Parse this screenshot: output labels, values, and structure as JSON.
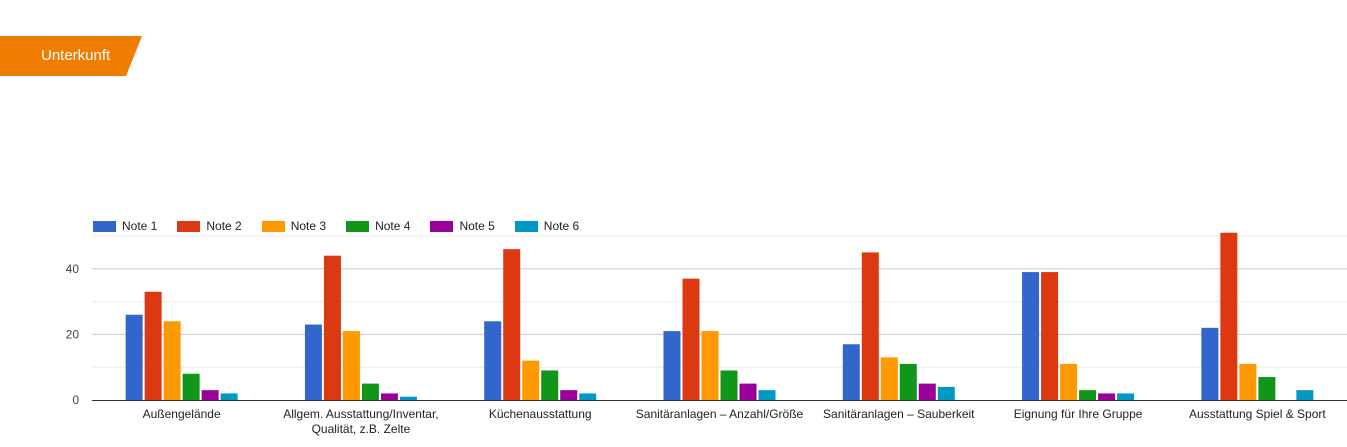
{
  "header": {
    "section_label": "Unterkunft",
    "accent_color": "#f07c00"
  },
  "chart_data": {
    "type": "bar",
    "categories": [
      [
        "Außengelände"
      ],
      [
        "Allgem. Ausstattung/Inventar,",
        "Qualität, z.B. Zelte"
      ],
      [
        "Küchenausstattung"
      ],
      [
        "Sanitäranlagen – Anzahl/Größe"
      ],
      [
        "Sanitäranlagen – Sauberkeit"
      ],
      [
        "Eignung für Ihre Gruppe"
      ],
      [
        "Ausstattung Spiel & Sport"
      ]
    ],
    "series": [
      {
        "name": "Note 1",
        "color": "#3366cc",
        "values": [
          26,
          23,
          24,
          21,
          17,
          39,
          22
        ]
      },
      {
        "name": "Note 2",
        "color": "#dc3912",
        "values": [
          33,
          44,
          46,
          37,
          45,
          39,
          51
        ]
      },
      {
        "name": "Note 3",
        "color": "#ff9900",
        "values": [
          24,
          21,
          12,
          21,
          13,
          11,
          11
        ]
      },
      {
        "name": "Note 4",
        "color": "#109618",
        "values": [
          8,
          5,
          9,
          9,
          11,
          3,
          7
        ]
      },
      {
        "name": "Note 5",
        "color": "#990099",
        "values": [
          3,
          2,
          3,
          5,
          5,
          2,
          0
        ]
      },
      {
        "name": "Note 6",
        "color": "#0099c6",
        "values": [
          2,
          1,
          2,
          3,
          4,
          2,
          3
        ]
      }
    ],
    "y_ticks": [
      0,
      20,
      40
    ],
    "ylim": [
      0,
      50
    ],
    "legend_position": "top-left",
    "grid": true
  }
}
